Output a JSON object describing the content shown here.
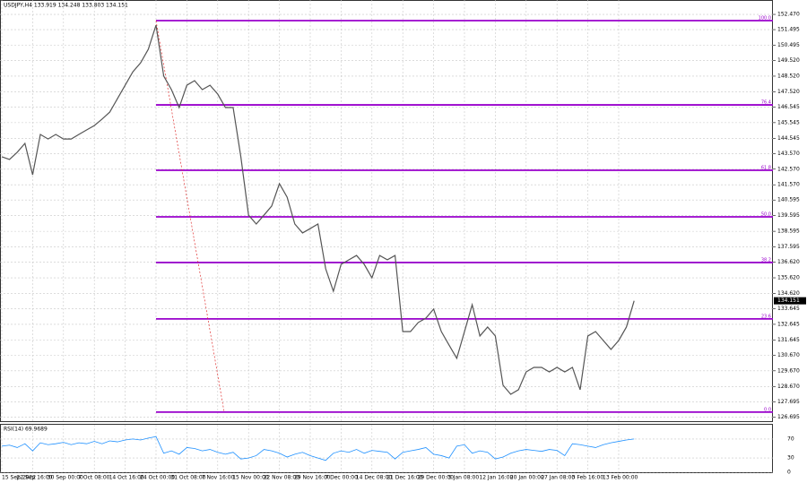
{
  "chart_data": {
    "type": "line",
    "title": "USDJPY,H4 133.919 134.248 133.803 134.151",
    "categories": [
      "15 Sep 2022",
      null,
      null,
      null,
      "22 Sep 16:00",
      null,
      null,
      null,
      "30 Sep 00:00",
      null,
      null,
      null,
      "7 Oct 08:00",
      null,
      null,
      null,
      "14 Oct 16:00",
      null,
      null,
      null,
      "24 Oct 00:00",
      null,
      null,
      null,
      "31 Oct 08:00",
      null,
      null,
      null,
      "7 Nov 16:00",
      null,
      null,
      null,
      "15 Nov 00:00",
      null,
      null,
      null,
      "22 Nov 08:00",
      null,
      null,
      null,
      "29 Nov 16:00",
      null,
      null,
      null,
      "7 Dec 00:00",
      null,
      null,
      null,
      "14 Dec 08:00",
      null,
      null,
      null,
      "21 Dec 16:00",
      null,
      null,
      null,
      "29 Dec 00:00",
      null,
      null,
      null,
      "5 Jan 08:00",
      null,
      null,
      null,
      "12 Jan 16:00",
      null,
      null,
      null,
      "20 Jan 00:00",
      null,
      null,
      null,
      "27 Jan 08:00",
      null,
      null,
      null,
      "3 Feb 16:00",
      null,
      null,
      null,
      "13 Feb 00:00",
      null,
      null
    ],
    "series": [
      {
        "name": "USDJPY,H4",
        "color": "#555555",
        "values": [
          143.36,
          143.19,
          143.65,
          144.22,
          142.21,
          144.79,
          144.5,
          144.79,
          144.5,
          144.5,
          144.79,
          145.08,
          145.36,
          145.77,
          146.22,
          147.08,
          147.94,
          148.8,
          149.37,
          150.24,
          151.78,
          148.52,
          147.66,
          146.51,
          147.94,
          148.23,
          147.66,
          147.94,
          147.37,
          146.51,
          146.51,
          143.36,
          139.63,
          139.06,
          139.63,
          140.21,
          141.64,
          140.78,
          139.06,
          138.49,
          138.77,
          139.06,
          136.2,
          134.76,
          136.48,
          136.77,
          137.05,
          136.48,
          135.62,
          137.05,
          136.77,
          137.05,
          132.18,
          132.18,
          132.76,
          133.04,
          133.62,
          132.18,
          131.32,
          130.47,
          132.18,
          133.9,
          131.9,
          132.47,
          131.9,
          128.75,
          128.17,
          128.46,
          129.6,
          129.89,
          129.89,
          129.6,
          129.89,
          129.6,
          129.89,
          128.46,
          131.9,
          132.18,
          131.61,
          131.04,
          131.61,
          132.47,
          134.15
        ]
      }
    ],
    "ylim": [
      126.45,
      153.39
    ],
    "yticks": [
      {
        "value": 152.47,
        "label": "152.470"
      },
      {
        "value": 151.495,
        "label": "151.495"
      },
      {
        "value": 150.495,
        "label": "150.495"
      },
      {
        "value": 149.52,
        "label": "149.520"
      },
      {
        "value": 148.52,
        "label": "148.520"
      },
      {
        "value": 147.52,
        "label": "147.520"
      },
      146.545,
      145.545,
      144.545,
      {
        "value": 143.57,
        "label": "143.570"
      },
      {
        "value": 142.57,
        "label": "142.570"
      },
      {
        "value": 141.57,
        "label": "141.570"
      },
      140.595,
      139.595,
      138.595,
      137.595,
      {
        "value": 136.62,
        "label": "136.620"
      },
      {
        "value": 135.62,
        "label": "135.620"
      },
      {
        "value": 134.62,
        "label": "134.620"
      },
      133.645,
      132.645,
      131.645,
      {
        "value": 130.67,
        "label": "130.670"
      },
      {
        "value": 129.67,
        "label": "129.670"
      },
      {
        "value": 128.67,
        "label": "128.670"
      },
      127.695,
      126.695
    ],
    "last_price": 134.151,
    "fib_color": "#9900cc",
    "fib_levels": [
      {
        "label": "100.0",
        "price": 152.07
      },
      {
        "label": "76.4",
        "price": 146.68
      },
      {
        "label": "61.8",
        "price": 142.5
      },
      {
        "label": "50.0",
        "price": 139.52
      },
      {
        "label": "38.2",
        "price": 136.6
      },
      {
        "label": "23.6",
        "price": 132.99
      },
      {
        "label": "0.0",
        "price": 127.03
      }
    ],
    "grid": true,
    "indicator": {
      "title": "RSI(14) 69.9689",
      "color": "#1e90ff",
      "ylim": [
        0,
        100
      ],
      "yticks": [
        70,
        30,
        0
      ],
      "values": [
        55,
        57,
        52,
        60,
        45,
        62,
        58,
        60,
        63,
        58,
        62,
        60,
        65,
        60,
        66,
        64,
        68,
        70,
        68,
        72,
        75,
        40,
        45,
        38,
        52,
        50,
        45,
        48,
        42,
        38,
        42,
        28,
        30,
        35,
        48,
        45,
        40,
        32,
        38,
        42,
        35,
        30,
        25,
        40,
        45,
        42,
        48,
        40,
        46,
        44,
        42,
        28,
        42,
        45,
        48,
        52,
        38,
        35,
        30,
        55,
        58,
        40,
        45,
        42,
        28,
        32,
        40,
        45,
        48,
        46,
        44,
        48,
        46,
        35,
        60,
        58,
        55,
        52,
        58,
        62,
        65,
        68,
        70
      ]
    }
  }
}
